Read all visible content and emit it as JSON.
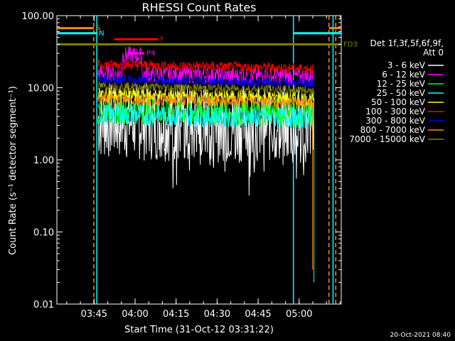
{
  "chart_data": {
    "type": "line",
    "title": "RHESSI Count Rates",
    "xlabel": "Start Time (31-Oct-12 03:31:22)",
    "ylabel": "Count Rate (s⁻¹ detector segment⁻¹)",
    "yscale": "log",
    "ylim": [
      0.01,
      100
    ],
    "xlim_minutes_after_start": [
      0,
      104
    ],
    "x_ticks": [
      "03:45",
      "04:00",
      "04:15",
      "04:30",
      "04:45",
      "05:00"
    ],
    "x_tick_minutes": [
      13.6,
      28.6,
      43.6,
      58.6,
      73.6,
      88.6
    ],
    "y_ticks": [
      "100.00",
      "10.00",
      "1.00",
      "0.10",
      "0.01"
    ],
    "y_tick_values": [
      100,
      10,
      1,
      0.1,
      0.01
    ],
    "legend_header": [
      "Det 1f,3f,5f,6f,9f,",
      "Att 0"
    ],
    "legend_position": "right",
    "series": [
      {
        "name": "3 - 6 keV",
        "color": "#ffffff",
        "minute_range": [
          15,
          94
        ],
        "level": 3.5,
        "noise": 0.55
      },
      {
        "name": "6 - 12 keV",
        "color": "#ff00ff",
        "minute_range": [
          15,
          94
        ],
        "level": 16,
        "noise": 0.12
      },
      {
        "name": "12 - 25 keV",
        "color": "#00ff00",
        "minute_range": [
          15,
          94
        ],
        "level": 5,
        "noise": 0.2
      },
      {
        "name": "25 - 50 keV",
        "color": "#00ffff",
        "minute_range": [
          15,
          94
        ],
        "level": 4.3,
        "noise": 0.15
      },
      {
        "name": "50 - 100 keV",
        "color": "#ffff00",
        "minute_range": [
          15,
          94
        ],
        "level": 8,
        "noise": 0.1
      },
      {
        "name": "100 - 300 keV",
        "color": "#ff0000",
        "minute_range": [
          15,
          94
        ],
        "level": 21,
        "noise": 0.07
      },
      {
        "name": "300 - 800 keV",
        "color": "#0000ff",
        "minute_range": [
          15,
          94
        ],
        "level": 13,
        "noise": 0.07
      },
      {
        "name": "800 - 7000 keV",
        "color": "#ff8c00",
        "minute_range": [
          15,
          94
        ],
        "level": 7,
        "noise": 0.08
      },
      {
        "name": "7000 - 15000 keV",
        "color": "#808000",
        "minute_range": [
          15,
          94
        ],
        "level": 10.5,
        "noise": 0.06
      }
    ],
    "flags": [
      {
        "label": "S",
        "color": "#ff8c00",
        "value": 67,
        "start": 0,
        "end": 13.5
      },
      {
        "label": "N",
        "color": "#00ffff",
        "value": 57,
        "start": 0,
        "end": 14.6
      },
      {
        "label": "F",
        "color": "#ff0000",
        "value": 47,
        "start": 21,
        "end": 37
      },
      {
        "label": "FD3",
        "color": "#808000",
        "value": 40,
        "start": 0,
        "end": 104
      },
      {
        "label": "P4",
        "color": "#ff00ff",
        "value": 30,
        "start": 26,
        "end": 32
      }
    ],
    "orange_right_segment": {
      "value": 67,
      "start": 99.5,
      "end": 104
    },
    "cyan_right_segment": {
      "value": 57,
      "start": 86.5,
      "end": 104
    },
    "vlines_solid": [
      {
        "color": "#00ffff",
        "minute": 14.6
      },
      {
        "color": "#00ffff",
        "minute": 86.5
      },
      {
        "color": "#00ffff",
        "minute": 101
      }
    ],
    "vlines_dashed": [
      {
        "color": "#ff8c00",
        "minute": 13.5
      },
      {
        "color": "#ff8c00",
        "minute": 99.5
      },
      {
        "color": "#ff8c00",
        "minute": 102
      }
    ]
  },
  "timestamp": "20-Oct-2021 08:40"
}
